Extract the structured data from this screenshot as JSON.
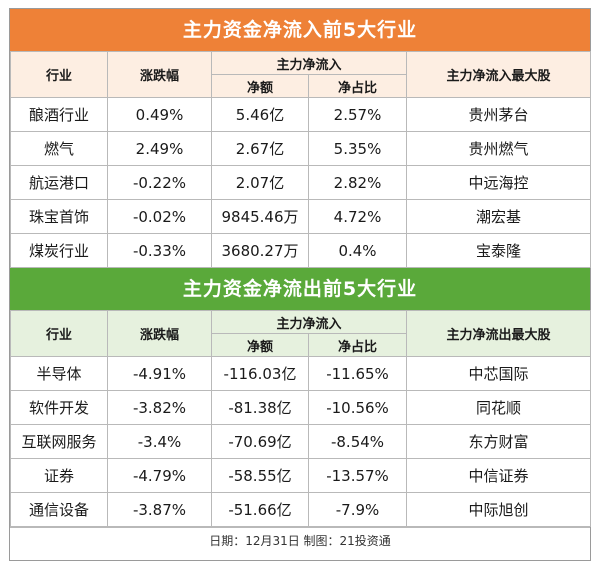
{
  "inflow": {
    "title": "主力资金净流入前5大行业",
    "headers": {
      "industry": "行业",
      "change": "涨跌幅",
      "group": "主力净流入",
      "amount": "净额",
      "ratio": "净占比",
      "top_stock": "主力净流入最大股"
    },
    "rows": [
      {
        "industry": "酿酒行业",
        "change": "0.49%",
        "amount": "5.46亿",
        "ratio": "2.57%",
        "stock": "贵州茅台"
      },
      {
        "industry": "燃气",
        "change": "2.49%",
        "amount": "2.67亿",
        "ratio": "5.35%",
        "stock": "贵州燃气"
      },
      {
        "industry": "航运港口",
        "change": "-0.22%",
        "amount": "2.07亿",
        "ratio": "2.82%",
        "stock": "中远海控"
      },
      {
        "industry": "珠宝首饰",
        "change": "-0.02%",
        "amount": "9845.46万",
        "ratio": "4.72%",
        "stock": "潮宏基"
      },
      {
        "industry": "煤炭行业",
        "change": "-0.33%",
        "amount": "3680.27万",
        "ratio": "0.4%",
        "stock": "宝泰隆"
      }
    ]
  },
  "outflow": {
    "title": "主力资金净流出前5大行业",
    "headers": {
      "industry": "行业",
      "change": "涨跌幅",
      "group": "主力净流入",
      "amount": "净额",
      "ratio": "净占比",
      "top_stock": "主力净流出最大股"
    },
    "rows": [
      {
        "industry": "半导体",
        "change": "-4.91%",
        "amount": "-116.03亿",
        "ratio": "-11.65%",
        "stock": "中芯国际"
      },
      {
        "industry": "软件开发",
        "change": "-3.82%",
        "amount": "-81.38亿",
        "ratio": "-10.56%",
        "stock": "同花顺"
      },
      {
        "industry": "互联网服务",
        "change": "-3.4%",
        "amount": "-70.69亿",
        "ratio": "-8.54%",
        "stock": "东方财富"
      },
      {
        "industry": "证券",
        "change": "-4.79%",
        "amount": "-58.55亿",
        "ratio": "-13.57%",
        "stock": "中信证券"
      },
      {
        "industry": "通信设备",
        "change": "-3.87%",
        "amount": "-51.66亿",
        "ratio": "-7.9%",
        "stock": "中际旭创"
      }
    ]
  },
  "footer": "日期：12月31日 制图：21投资通",
  "colors": {
    "orange_banner": "#ee8137",
    "green_banner": "#5aa93a",
    "orange_header_bg": "#fdeee2",
    "green_header_bg": "#e6f1de"
  }
}
